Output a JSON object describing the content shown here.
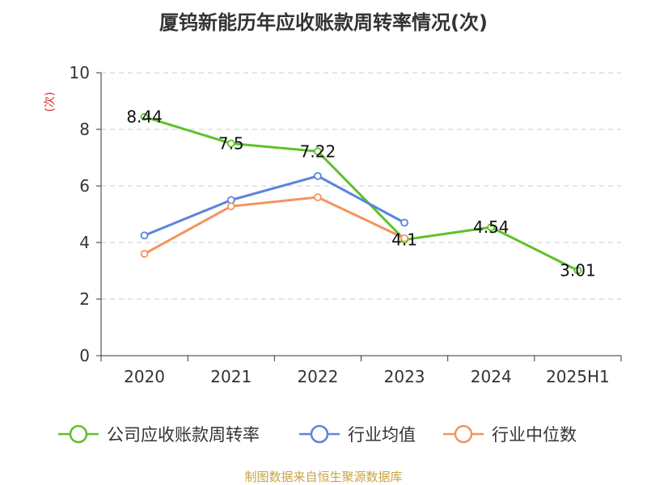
{
  "chart_data": {
    "type": "line",
    "title": "厦钨新能历年应收账款周转率情况(次)",
    "ylabel": "(次)",
    "ylim": [
      0,
      10
    ],
    "yticks": [
      0,
      2,
      4,
      6,
      8,
      10
    ],
    "categories": [
      "2020",
      "2021",
      "2022",
      "2023",
      "2024",
      "2025H1"
    ],
    "grid": true,
    "legend_position": "bottom",
    "series": [
      {
        "name": "公司应收账款周转率",
        "color": "#5ec12a",
        "values": [
          8.44,
          7.5,
          7.22,
          4.1,
          4.54,
          3.01
        ],
        "labels": [
          "8.44",
          "7.5",
          "7.22",
          "4.1",
          "4.54",
          "3.01"
        ]
      },
      {
        "name": "行业均值",
        "color": "#5b84dc",
        "values": [
          4.25,
          5.5,
          6.35,
          4.7,
          null,
          null
        ]
      },
      {
        "name": "行业中位数",
        "color": "#f4935e",
        "values": [
          3.6,
          5.28,
          5.6,
          4.15,
          null,
          null
        ]
      }
    ],
    "source": "制图数据来自恒生聚源数据库",
    "colors": {
      "source": "#c9a441",
      "ylabel": "#d4302a",
      "axis": "#333333",
      "grid": "#cccccc"
    }
  }
}
